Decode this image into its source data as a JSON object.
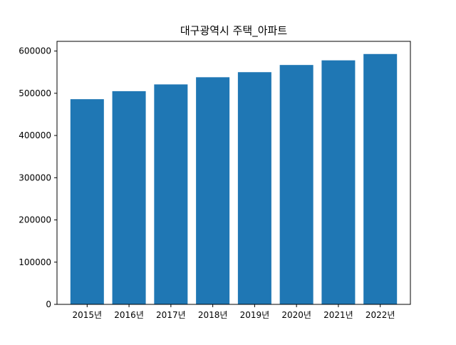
{
  "chart_data": {
    "type": "bar",
    "title": "대구광역시 주택_아파트",
    "xlabel": "",
    "ylabel": "",
    "categories": [
      "2015년",
      "2016년",
      "2017년",
      "2018년",
      "2019년",
      "2020년",
      "2021년",
      "2022년"
    ],
    "values": [
      486000,
      505000,
      521000,
      538000,
      550000,
      567000,
      578000,
      593000
    ],
    "ylim": [
      0,
      623000
    ],
    "yticks": [
      0,
      100000,
      200000,
      300000,
      400000,
      500000,
      600000
    ],
    "ytick_labels": [
      "0",
      "100000",
      "200000",
      "300000",
      "400000",
      "500000",
      "600000"
    ],
    "bar_color": "#1f77b4",
    "grid": false,
    "legend": false
  }
}
